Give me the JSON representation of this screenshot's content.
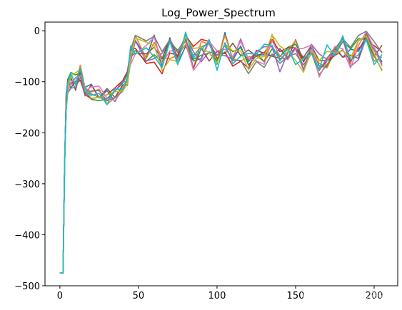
{
  "chart_data": {
    "type": "line",
    "title": "Log_Power_Spectrum",
    "xlabel": "",
    "ylabel": "",
    "xlim": [
      -9.5,
      215
    ],
    "ylim": [
      -500,
      17
    ],
    "x_ticks": [
      0,
      50,
      100,
      150,
      200
    ],
    "x_tick_labels": [
      "0",
      "50",
      "100",
      "150",
      "200"
    ],
    "y_ticks": [
      0,
      -100,
      -200,
      -300,
      -400,
      -500
    ],
    "y_tick_labels": [
      "0",
      "−100",
      "−200",
      "−300",
      "−400",
      "−500"
    ],
    "grid": false,
    "legend": "none",
    "series_count": 10,
    "series_colors": [
      "#1f77b4",
      "#ff7f0e",
      "#2ca02c",
      "#d62728",
      "#9467bd",
      "#8c564b",
      "#e377c2",
      "#7f7f7f",
      "#bcbd22",
      "#17becf"
    ],
    "x": [
      0,
      2,
      3,
      4,
      5,
      7,
      10,
      13,
      16,
      20,
      25,
      30,
      35,
      40,
      43,
      45,
      48,
      55,
      60,
      65,
      70,
      75,
      80,
      85,
      90,
      95,
      100,
      105,
      110,
      115,
      120,
      125,
      130,
      135,
      140,
      145,
      150,
      155,
      160,
      165,
      170,
      175,
      180,
      185,
      190,
      195,
      200,
      205
    ],
    "y_mean": [
      -475,
      -475,
      -260,
      -140,
      -105,
      -98,
      -100,
      -85,
      -110,
      -120,
      -125,
      -130,
      -125,
      -115,
      -95,
      -50,
      -30,
      -45,
      -35,
      -60,
      -30,
      -50,
      -25,
      -55,
      -40,
      -35,
      -55,
      -30,
      -50,
      -40,
      -60,
      -35,
      -50,
      -30,
      -55,
      -45,
      -40,
      -60,
      -35,
      -70,
      -50,
      -40,
      -30,
      -55,
      -35,
      -25,
      -40,
      -55
    ]
  },
  "watermark": "CSDN @心随而动"
}
